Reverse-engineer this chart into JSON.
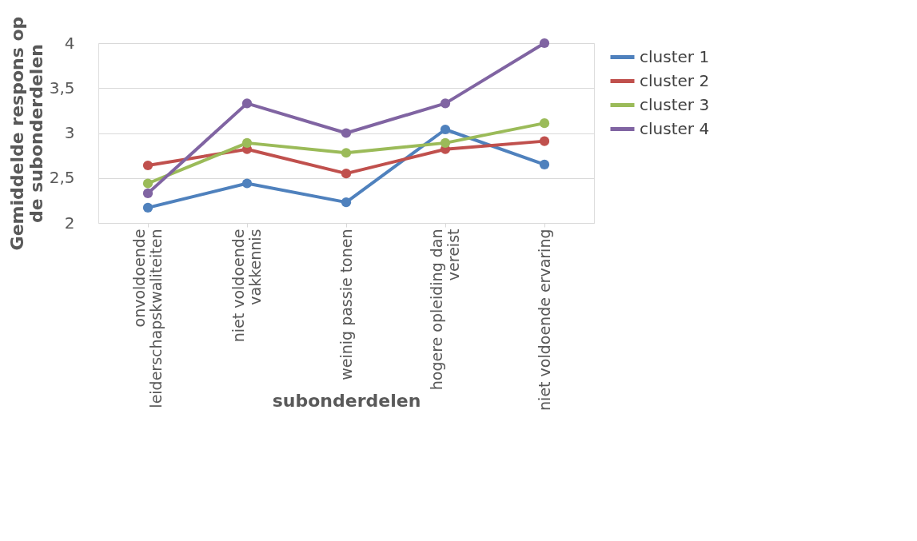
{
  "chart_data": {
    "type": "line",
    "xlabel": "subonderdelen",
    "ylabel": "Gemiddelde respons op de subonderdelen",
    "categories": [
      "onvoldoende leiderschapskwaliteiten",
      "niet voldoende vakkennis",
      "weinig passie tonen",
      "hogere opleiding dan vereist",
      "niet voldoende ervaring"
    ],
    "series": [
      {
        "name": "cluster 1",
        "color": "#4f81bd",
        "values": [
          2.17,
          2.44,
          2.23,
          3.04,
          2.65
        ]
      },
      {
        "name": "cluster 2",
        "color": "#c0504d",
        "values": [
          2.64,
          2.82,
          2.55,
          2.82,
          2.91
        ]
      },
      {
        "name": "cluster 3",
        "color": "#9bbb59",
        "values": [
          2.44,
          2.89,
          2.78,
          2.89,
          3.11
        ]
      },
      {
        "name": "cluster 4",
        "color": "#8064a2",
        "values": [
          2.33,
          3.33,
          3.0,
          3.33,
          4.0
        ]
      }
    ],
    "ylim": [
      2,
      4
    ],
    "yticks": [
      {
        "value": 2,
        "label": "2"
      },
      {
        "value": 2.5,
        "label": "2,5"
      },
      {
        "value": 3,
        "label": "3"
      },
      {
        "value": 3.5,
        "label": "3,5"
      },
      {
        "value": 4,
        "label": "4"
      }
    ],
    "grid": "y",
    "legend": "right",
    "marker": "circle",
    "line_style": "solid"
  }
}
